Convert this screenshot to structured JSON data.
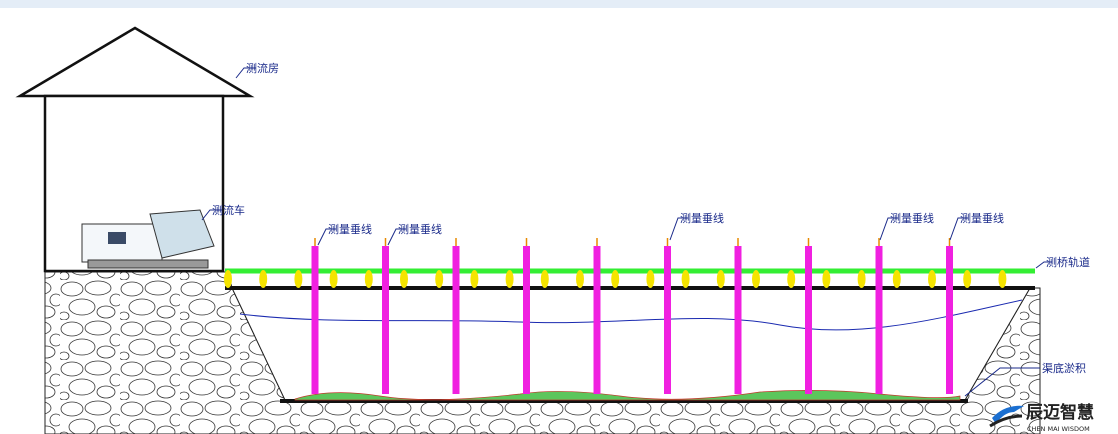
{
  "labels": {
    "house": "测流房",
    "car": "测流车",
    "verticals": [
      "测量垂线",
      "测量垂线",
      "测量垂线",
      "测量垂线",
      "测量垂线"
    ],
    "track": "测桥轨道",
    "sediment": "渠底淤积"
  },
  "logo": {
    "name": "辰迈智慧",
    "tagline": "CHEN MAI WISDOM"
  }
}
